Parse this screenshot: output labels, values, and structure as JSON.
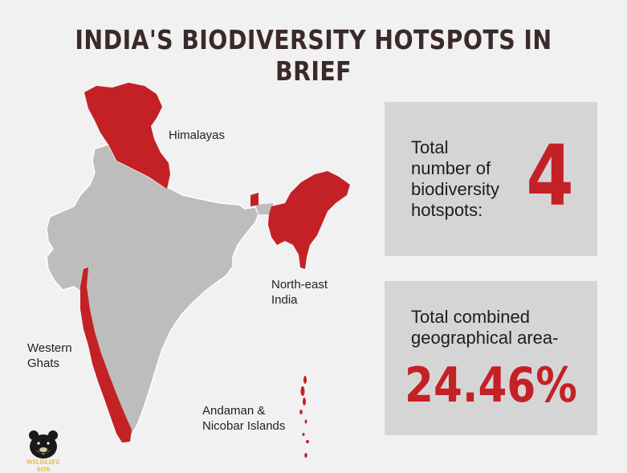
{
  "title": "INDIA'S BIODIVERSITY HOTSPOTS IN BRIEF",
  "map": {
    "labels": {
      "himalayas": "Himalayas",
      "northeast": "North-east\nIndia",
      "western_ghats": "Western\nGhats",
      "andaman": "Andaman &\nNicobar Islands"
    },
    "colors": {
      "land": "#bdbdbd",
      "hotspot": "#c42126"
    }
  },
  "stats": {
    "hotspot_count": {
      "text": "Total\nnumber of\nbiodiversity\nhotspots:",
      "value": "4"
    },
    "area": {
      "text": "Total combined\ngeographical area-",
      "value": "24.46%"
    }
  },
  "logo": {
    "text": "WILDLIFE SOS",
    "icon": "bear-icon"
  },
  "colors": {
    "background": "#f2f1f2",
    "card": "#d6d5d6",
    "accent": "#c42126",
    "title": "#3b2a2a"
  }
}
